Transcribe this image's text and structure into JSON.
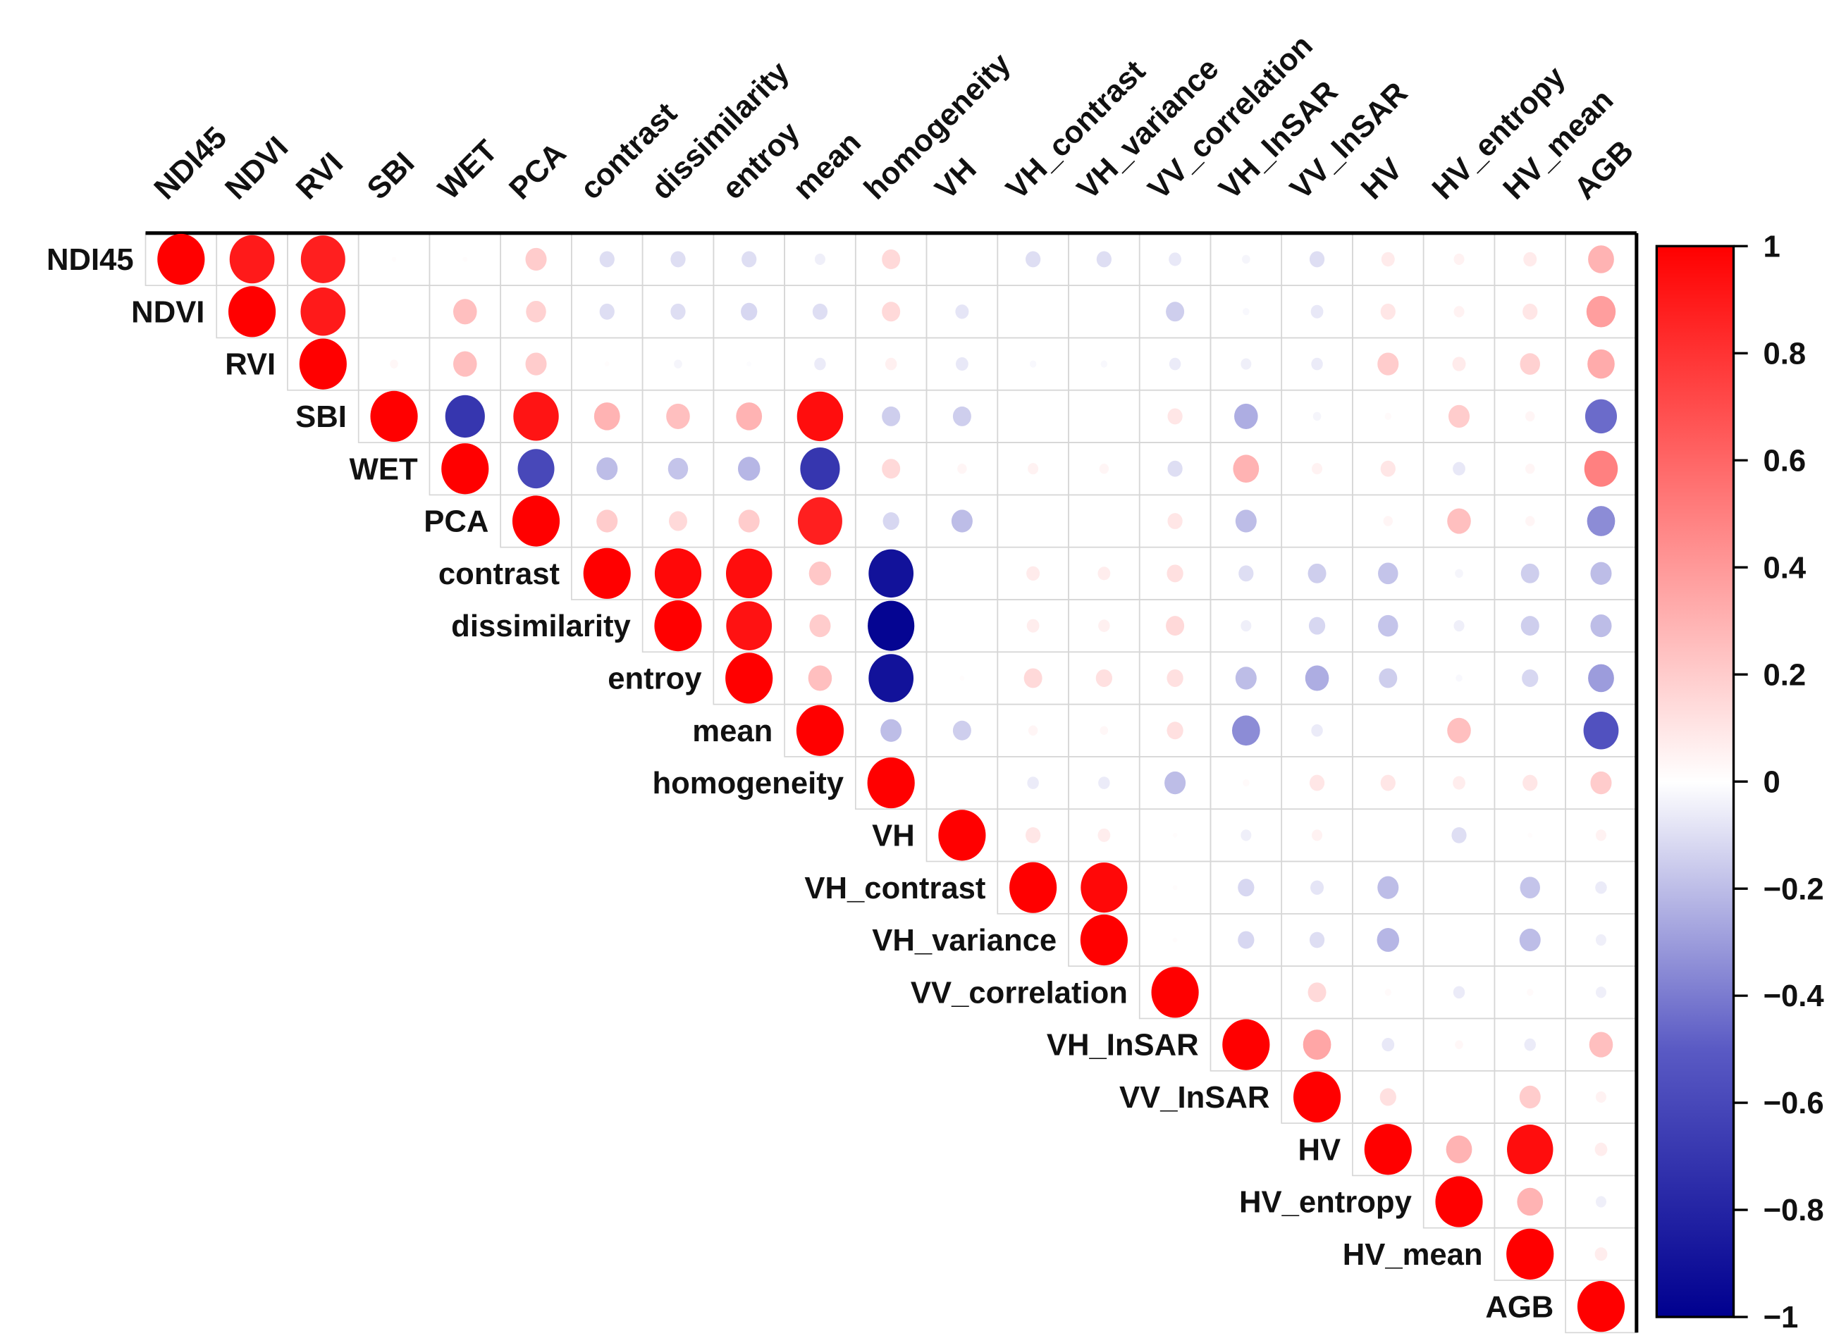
{
  "chart_data": {
    "type": "heatmap",
    "subtype": "correlation-circles-upper-triangle",
    "variables": [
      "NDI45",
      "NDVI",
      "RVI",
      "SBI",
      "WET",
      "PCA",
      "contrast",
      "dissimilarity",
      "entroy",
      "mean",
      "homogeneity",
      "VH",
      "VH_contrast",
      "VH_variance",
      "VV_correlation",
      "VH_InSAR",
      "VV_InSAR",
      "HV",
      "HV_entropy",
      "HV_mean",
      "AGB"
    ],
    "upper_triangle_rows_from_diagonal": [
      [
        1,
        0.9,
        0.88,
        0.01,
        0.01,
        0.2,
        -0.1,
        -0.1,
        -0.1,
        -0.05,
        0.15,
        0.0,
        -0.1,
        -0.1,
        -0.07,
        -0.03,
        -0.1,
        0.08,
        0.05,
        0.08,
        0.3
      ],
      [
        1,
        0.9,
        0.0,
        0.25,
        0.18,
        -0.1,
        -0.1,
        -0.12,
        -0.1,
        0.15,
        -0.08,
        0.0,
        0.0,
        -0.15,
        -0.02,
        -0.07,
        0.1,
        0.05,
        0.1,
        0.38
      ],
      [
        1,
        0.03,
        0.25,
        0.2,
        0.01,
        -0.03,
        -0.01,
        -0.06,
        0.06,
        -0.07,
        -0.02,
        -0.02,
        -0.06,
        -0.05,
        -0.06,
        0.2,
        0.08,
        0.18,
        0.33
      ],
      [
        1,
        -0.7,
        0.92,
        0.3,
        0.25,
        0.3,
        0.95,
        -0.15,
        -0.15,
        0.0,
        0.0,
        0.1,
        -0.25,
        -0.03,
        0.02,
        0.2,
        0.04,
        -0.45
      ],
      [
        1,
        -0.6,
        -0.2,
        -0.18,
        -0.22,
        -0.7,
        0.15,
        0.04,
        0.05,
        0.04,
        -0.1,
        0.3,
        0.05,
        0.1,
        -0.07,
        0.04,
        0.5
      ],
      [
        1,
        0.2,
        0.15,
        0.2,
        0.88,
        -0.12,
        -0.2,
        0.0,
        0.0,
        0.1,
        -0.2,
        0.0,
        0.04,
        0.25,
        0.04,
        -0.35
      ],
      [
        1,
        0.97,
        0.95,
        0.22,
        -0.9,
        0.0,
        0.08,
        0.07,
        0.12,
        -0.1,
        -0.15,
        -0.18,
        -0.03,
        -0.15,
        -0.2
      ],
      [
        1,
        0.93,
        0.2,
        -0.97,
        0.0,
        0.07,
        0.06,
        0.15,
        -0.05,
        -0.12,
        -0.18,
        -0.05,
        -0.15,
        -0.2
      ],
      [
        1,
        0.25,
        -0.9,
        0.01,
        0.15,
        0.12,
        0.12,
        -0.2,
        -0.25,
        -0.15,
        -0.02,
        -0.12,
        -0.3
      ],
      [
        1,
        -0.2,
        -0.15,
        0.04,
        0.03,
        0.12,
        -0.35,
        -0.06,
        0.0,
        0.25,
        0.0,
        -0.55
      ],
      [
        1,
        0.0,
        -0.06,
        -0.06,
        -0.2,
        0.02,
        0.1,
        0.1,
        0.07,
        0.1,
        0.2
      ],
      [
        1,
        0.1,
        0.07,
        0.01,
        -0.05,
        0.05,
        0.0,
        -0.1,
        0.01,
        0.05
      ],
      [
        1,
        0.97,
        0.01,
        -0.12,
        -0.08,
        -0.2,
        0.0,
        -0.18,
        -0.06
      ],
      [
        1,
        0.01,
        -0.12,
        -0.1,
        -0.22,
        0.0,
        -0.2,
        -0.05
      ],
      [
        1,
        0.0,
        0.15,
        0.02,
        -0.06,
        0.02,
        -0.05
      ],
      [
        1,
        0.35,
        -0.07,
        0.03,
        -0.06,
        0.25
      ],
      [
        1,
        0.12,
        0.0,
        0.2,
        0.05
      ],
      [
        1,
        0.3,
        0.95,
        0.07
      ],
      [
        1,
        0.3,
        -0.05
      ],
      [
        1,
        0.07
      ],
      [
        1
      ]
    ],
    "colorbar": {
      "range": [
        -1,
        1
      ],
      "tick_labels": [
        "1",
        "0.8",
        "0.6",
        "0.4",
        "0.2",
        "0",
        "−0.2",
        "−0.4",
        "−0.6",
        "−0.8",
        "−1"
      ],
      "tick_values": [
        1,
        0.8,
        0.6,
        0.4,
        0.2,
        0,
        -0.2,
        -0.4,
        -0.6,
        -0.8,
        -1
      ],
      "placement": "right"
    },
    "colors": {
      "negative": "#00008F",
      "mid_negative": "#5A5AC4",
      "zero": "#FFFFFF",
      "positive": "#FF0000"
    }
  }
}
